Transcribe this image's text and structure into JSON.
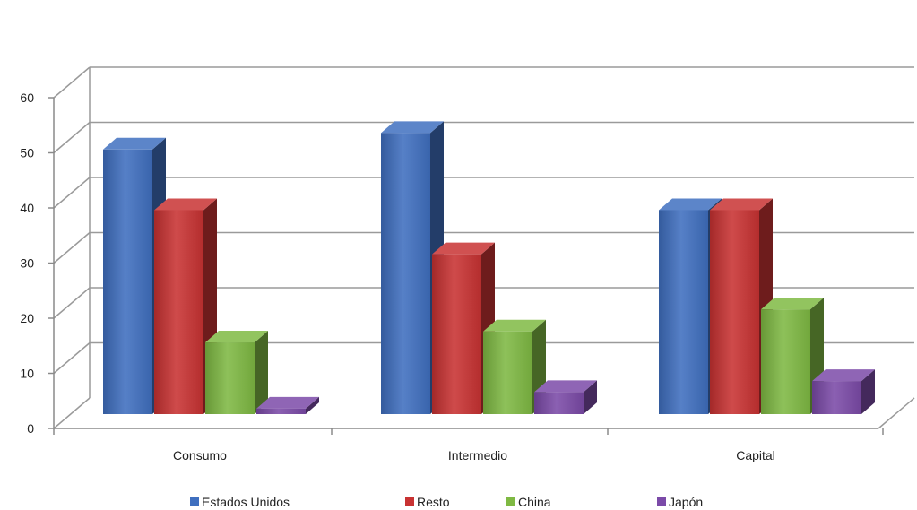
{
  "chart_data": {
    "type": "bar",
    "title": "",
    "xlabel": "",
    "ylabel": "",
    "ylim": [
      0,
      60
    ],
    "yticks": [
      0,
      10,
      20,
      30,
      40,
      50,
      60
    ],
    "categories": [
      "Consumo",
      "Intermedio",
      "Capital"
    ],
    "series": [
      {
        "name": "Estados Unidos",
        "color": "#3f6fbf",
        "values": [
          48,
          51,
          37
        ]
      },
      {
        "name": "Resto",
        "color": "#c83232",
        "values": [
          37,
          29,
          37
        ]
      },
      {
        "name": "China",
        "color": "#7fb943",
        "values": [
          13,
          15,
          19
        ]
      },
      {
        "name": "Japón",
        "color": "#7b4aa8",
        "values": [
          1,
          4,
          6
        ]
      }
    ],
    "grid": true,
    "legend": "bottom",
    "style": "3d-clustered-column"
  }
}
